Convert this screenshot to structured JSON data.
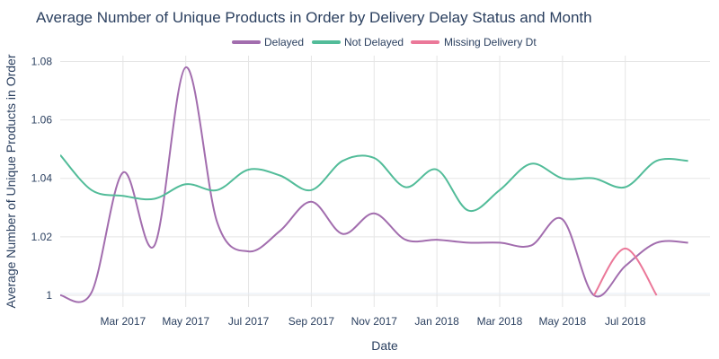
{
  "chart_data": {
    "type": "line",
    "title": "Average Number of Unique Products in Order by Delivery Delay Status and Month",
    "xlabel": "Date",
    "ylabel": "Average Number of Unique Products in Order",
    "x_ticks": [
      "Mar 2017",
      "May 2017",
      "Jul 2017",
      "Sep 2017",
      "Nov 2017",
      "Jan 2018",
      "Mar 2018",
      "May 2018",
      "Jul 2018"
    ],
    "y_ticks": [
      "1",
      "1.02",
      "1.04",
      "1.06",
      "1.08"
    ],
    "ylim": [
      0.996,
      1.082
    ],
    "grid": true,
    "legend_position": "top",
    "series": [
      {
        "name": "Delayed",
        "color": "#a26dae",
        "x": [
          "2017-01",
          "2017-02",
          "2017-03",
          "2017-04",
          "2017-05",
          "2017-06",
          "2017-07",
          "2017-08",
          "2017-09",
          "2017-10",
          "2017-11",
          "2017-12",
          "2018-01",
          "2018-02",
          "2018-03",
          "2018-04",
          "2018-05",
          "2018-06",
          "2018-07",
          "2018-08",
          "2018-09"
        ],
        "values": [
          1.0,
          1.001,
          1.042,
          1.017,
          1.078,
          1.025,
          1.015,
          1.022,
          1.032,
          1.021,
          1.028,
          1.019,
          1.019,
          1.018,
          1.018,
          1.017,
          1.026,
          1.0,
          1.01,
          1.018,
          1.018
        ]
      },
      {
        "name": "Not Delayed",
        "color": "#52bc99",
        "x": [
          "2017-01",
          "2017-02",
          "2017-03",
          "2017-04",
          "2017-05",
          "2017-06",
          "2017-07",
          "2017-08",
          "2017-09",
          "2017-10",
          "2017-11",
          "2017-12",
          "2018-01",
          "2018-02",
          "2018-03",
          "2018-04",
          "2018-05",
          "2018-06",
          "2018-07",
          "2018-08",
          "2018-09"
        ],
        "values": [
          1.048,
          1.036,
          1.034,
          1.033,
          1.038,
          1.036,
          1.043,
          1.041,
          1.036,
          1.046,
          1.047,
          1.037,
          1.043,
          1.029,
          1.036,
          1.045,
          1.04,
          1.04,
          1.037,
          1.046,
          1.046
        ]
      },
      {
        "name": "Missing Delivery Dt",
        "color": "#eb7899",
        "x": [
          "2018-06",
          "2018-07",
          "2018-08"
        ],
        "values": [
          1.0,
          1.016,
          1.0
        ]
      }
    ]
  }
}
